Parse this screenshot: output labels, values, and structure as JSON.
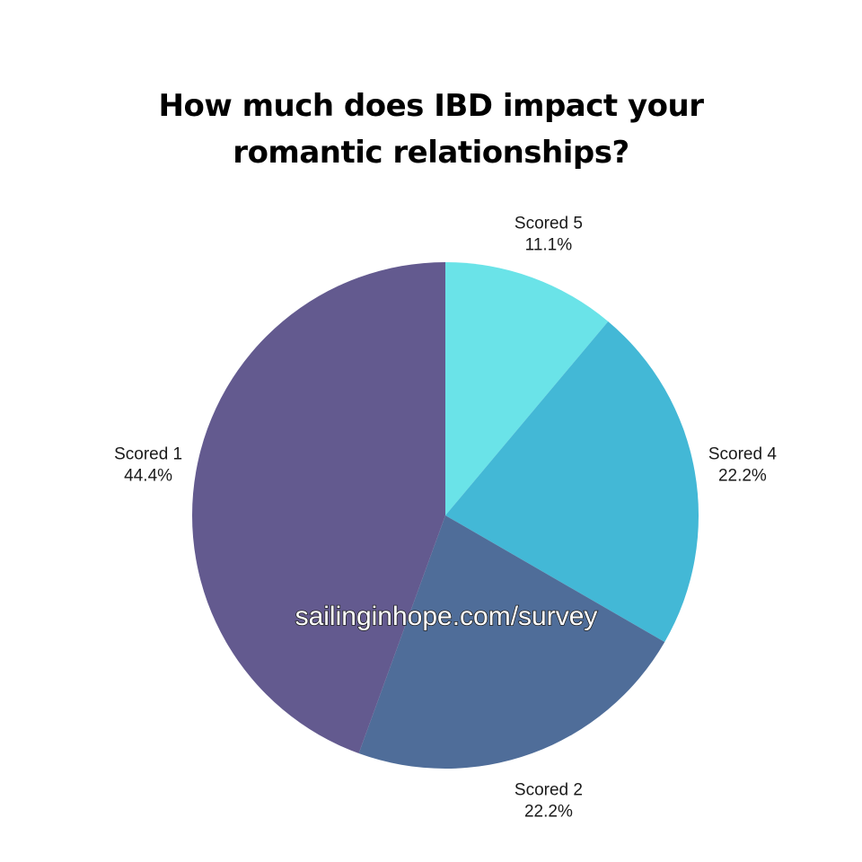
{
  "chart_data": {
    "type": "pie",
    "title_lines": [
      "How much does IBD impact your",
      "romantic relationships?"
    ],
    "slices": [
      {
        "label": "Scored 5",
        "value": 11.1,
        "value_label": "11.1%",
        "color": "#6ae3e8"
      },
      {
        "label": "Scored 4",
        "value": 22.2,
        "value_label": "22.2%",
        "color": "#43b8d6"
      },
      {
        "label": "Scored 2",
        "value": 22.2,
        "value_label": "22.2%",
        "color": "#4f6d99"
      },
      {
        "label": "Scored 1",
        "value": 44.4,
        "value_label": "44.4%",
        "color": "#635a8f"
      }
    ]
  },
  "watermark": "sailinginhope.com/survey"
}
